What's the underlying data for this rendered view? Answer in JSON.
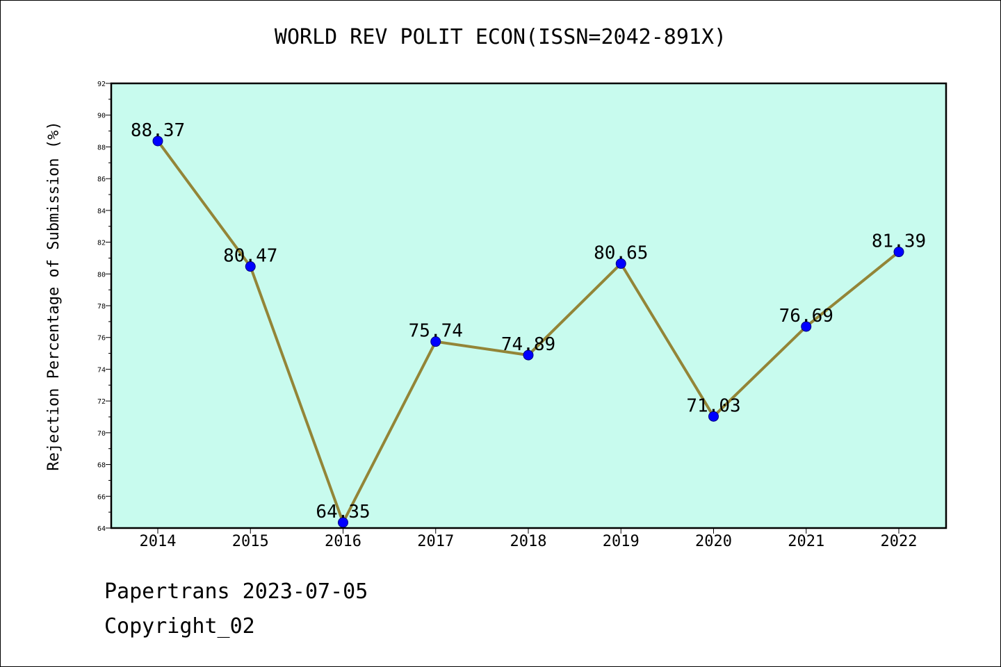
{
  "chart_data": {
    "type": "line",
    "title": "WORLD REV POLIT ECON(ISSN=2042-891X)",
    "xlabel": "",
    "ylabel": "Rejection Percentage of Submission (%)",
    "categories": [
      "2014",
      "2015",
      "2016",
      "2017",
      "2018",
      "2019",
      "2020",
      "2021",
      "2022"
    ],
    "series": [
      {
        "values": [
          88.37,
          80.47,
          64.35,
          75.74,
          74.89,
          80.65,
          71.03,
          76.69,
          81.39
        ],
        "data_labels": [
          "88.37",
          "80.47",
          "64.35",
          "75.74",
          "74.89",
          "80.65",
          "71.03",
          "76.69",
          "81.39"
        ]
      }
    ],
    "ylim": [
      64,
      92
    ],
    "yticks": [
      "64",
      "66",
      "68",
      "70",
      "72",
      "74",
      "76",
      "78",
      "80",
      "82",
      "84",
      "86",
      "88",
      "90",
      "92"
    ],
    "grid": false,
    "legend": "none",
    "colors": {
      "plot_background": "#c8fbee",
      "line": "#938537",
      "marker": "#0000ff",
      "axis": "#000000"
    }
  },
  "footer": {
    "source": "Papertrans 2023-07-05",
    "copyright": "Copyright_02"
  }
}
